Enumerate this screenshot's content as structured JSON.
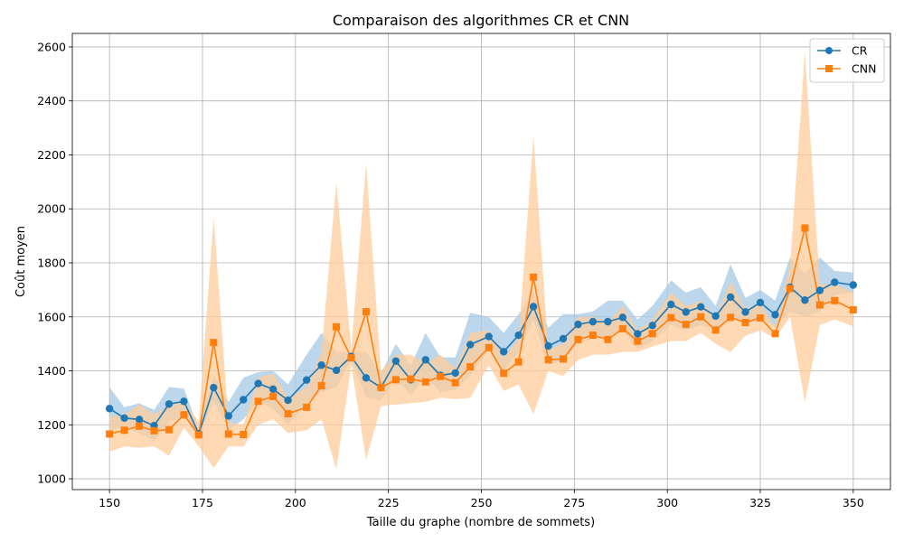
{
  "chart_data": {
    "type": "line",
    "title": "Comparaison des algorithmes CR et CNN",
    "xlabel": "Taille du graphe (nombre de sommets)",
    "ylabel": "Coût moyen",
    "xlim": [
      140,
      360
    ],
    "ylim": [
      960,
      2650
    ],
    "xticks": [
      150,
      175,
      200,
      225,
      250,
      275,
      300,
      325,
      350
    ],
    "yticks": [
      1000,
      1200,
      1400,
      1600,
      1800,
      2000,
      2200,
      2400,
      2600
    ],
    "grid": true,
    "legend_position": "top-right",
    "x": [
      150,
      154,
      158,
      162,
      166,
      170,
      174,
      178,
      182,
      186,
      190,
      194,
      198,
      203,
      207,
      211,
      215,
      219,
      223,
      227,
      231,
      235,
      239,
      243,
      247,
      252,
      256,
      260,
      264,
      268,
      272,
      276,
      280,
      284,
      288,
      292,
      296,
      301,
      305,
      309,
      313,
      317,
      321,
      325,
      329,
      333,
      337,
      341,
      345,
      350
    ],
    "series": [
      {
        "name": "CR",
        "color": "#1f77b4",
        "band_color": "#a6c8e4",
        "marker": "circle",
        "values": [
          1260,
          1225,
          1220,
          1197,
          1277,
          1287,
          1167,
          1338,
          1233,
          1293,
          1353,
          1332,
          1291,
          1366,
          1421,
          1402,
          1453,
          1374,
          1338,
          1436,
          1367,
          1441,
          1383,
          1392,
          1497,
          1527,
          1471,
          1532,
          1638,
          1492,
          1519,
          1572,
          1582,
          1582,
          1598,
          1537,
          1568,
          1646,
          1618,
          1637,
          1603,
          1673,
          1618,
          1653,
          1608,
          1710,
          1662,
          1698,
          1728,
          1718
        ],
        "band": [
          [
            1180,
            1340
          ],
          [
            1190,
            1265
          ],
          [
            1170,
            1280
          ],
          [
            1140,
            1255
          ],
          [
            1210,
            1340
          ],
          [
            1235,
            1335
          ],
          [
            1150,
            1185
          ],
          [
            1290,
            1385
          ],
          [
            1180,
            1285
          ],
          [
            1220,
            1375
          ],
          [
            1290,
            1395
          ],
          [
            1260,
            1400
          ],
          [
            1200,
            1350
          ],
          [
            1280,
            1460
          ],
          [
            1320,
            1540
          ],
          [
            1340,
            1470
          ],
          [
            1440,
            1470
          ],
          [
            1300,
            1470
          ],
          [
            1290,
            1390
          ],
          [
            1370,
            1500
          ],
          [
            1310,
            1420
          ],
          [
            1380,
            1540
          ],
          [
            1320,
            1450
          ],
          [
            1330,
            1450
          ],
          [
            1380,
            1615
          ],
          [
            1480,
            1600
          ],
          [
            1400,
            1540
          ],
          [
            1470,
            1610
          ],
          [
            1590,
            1690
          ],
          [
            1420,
            1560
          ],
          [
            1440,
            1610
          ],
          [
            1500,
            1610
          ],
          [
            1520,
            1620
          ],
          [
            1520,
            1660
          ],
          [
            1550,
            1660
          ],
          [
            1480,
            1590
          ],
          [
            1510,
            1640
          ],
          [
            1570,
            1735
          ],
          [
            1550,
            1690
          ],
          [
            1570,
            1710
          ],
          [
            1550,
            1640
          ],
          [
            1600,
            1795
          ],
          [
            1570,
            1670
          ],
          [
            1600,
            1700
          ],
          [
            1560,
            1660
          ],
          [
            1620,
            1820
          ],
          [
            1600,
            1760
          ],
          [
            1620,
            1820
          ],
          [
            1680,
            1770
          ],
          [
            1690,
            1765
          ]
        ]
      },
      {
        "name": "CNN",
        "color": "#ff7f0e",
        "band_color": "#ffcc99",
        "marker": "square",
        "values": [
          1166,
          1180,
          1195,
          1178,
          1182,
          1237,
          1163,
          1505,
          1166,
          1164,
          1287,
          1305,
          1241,
          1265,
          1345,
          1563,
          1448,
          1619,
          1338,
          1367,
          1370,
          1359,
          1379,
          1356,
          1415,
          1486,
          1391,
          1433,
          1747,
          1441,
          1444,
          1516,
          1532,
          1516,
          1556,
          1510,
          1538,
          1597,
          1572,
          1600,
          1551,
          1598,
          1579,
          1596,
          1538,
          1705,
          1929,
          1644,
          1660,
          1626
        ],
        "band": [
          [
            1100,
            1230
          ],
          [
            1120,
            1240
          ],
          [
            1115,
            1275
          ],
          [
            1120,
            1240
          ],
          [
            1085,
            1270
          ],
          [
            1190,
            1290
          ],
          [
            1120,
            1210
          ],
          [
            1040,
            1970
          ],
          [
            1120,
            1210
          ],
          [
            1120,
            1200
          ],
          [
            1200,
            1375
          ],
          [
            1220,
            1390
          ],
          [
            1170,
            1300
          ],
          [
            1180,
            1340
          ],
          [
            1220,
            1470
          ],
          [
            1035,
            2100
          ],
          [
            1420,
            1480
          ],
          [
            1070,
            2170
          ],
          [
            1270,
            1400
          ],
          [
            1275,
            1460
          ],
          [
            1280,
            1460
          ],
          [
            1285,
            1430
          ],
          [
            1300,
            1460
          ],
          [
            1295,
            1410
          ],
          [
            1300,
            1540
          ],
          [
            1420,
            1550
          ],
          [
            1325,
            1450
          ],
          [
            1350,
            1520
          ],
          [
            1240,
            2270
          ],
          [
            1400,
            1480
          ],
          [
            1380,
            1500
          ],
          [
            1440,
            1600
          ],
          [
            1460,
            1600
          ],
          [
            1460,
            1580
          ],
          [
            1470,
            1640
          ],
          [
            1470,
            1550
          ],
          [
            1490,
            1590
          ],
          [
            1510,
            1690
          ],
          [
            1510,
            1640
          ],
          [
            1540,
            1660
          ],
          [
            1500,
            1600
          ],
          [
            1470,
            1730
          ],
          [
            1530,
            1630
          ],
          [
            1550,
            1650
          ],
          [
            1520,
            1560
          ],
          [
            1600,
            1790
          ],
          [
            1285,
            2580
          ],
          [
            1570,
            1720
          ],
          [
            1590,
            1720
          ],
          [
            1565,
            1690
          ]
        ]
      }
    ]
  }
}
